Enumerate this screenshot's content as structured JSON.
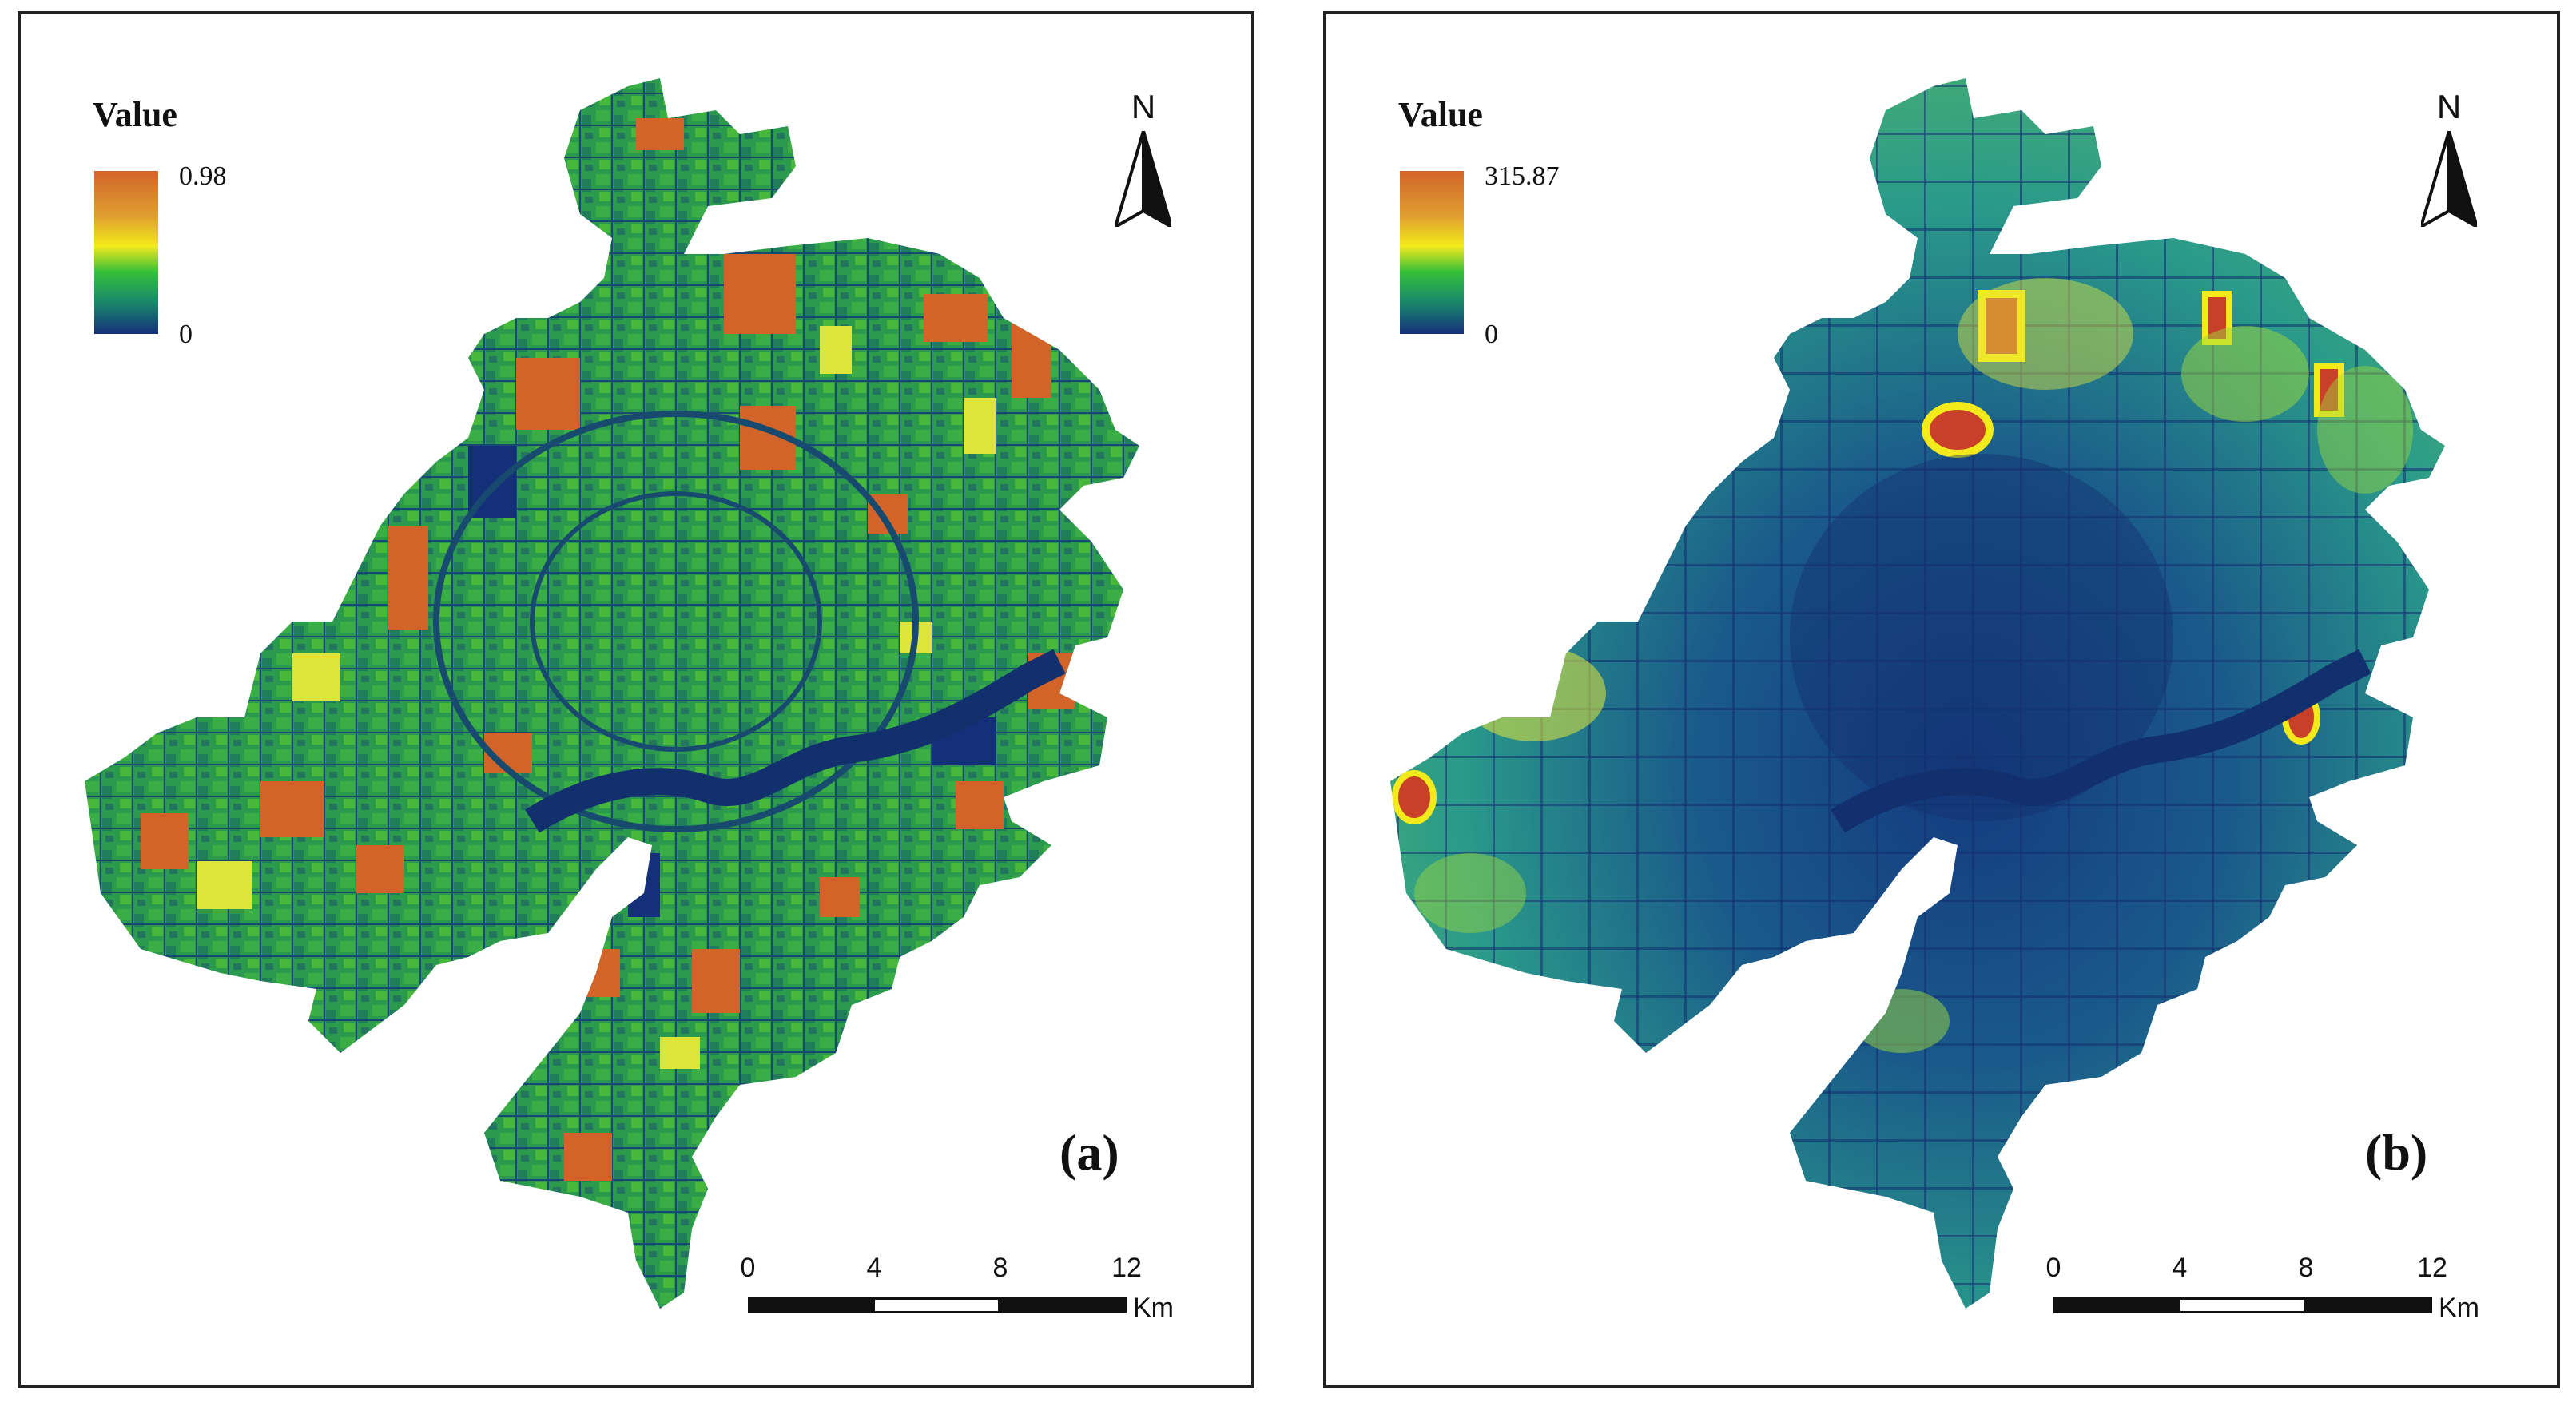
{
  "colors": {
    "ramp_high": "#d2642a",
    "ramp_mid": "#f2ea1a",
    "ramp_lowmid": "#2fb24a",
    "ramp_low": "#14307a",
    "panel_a_base": "#2c9a4c",
    "panel_b_base": "#1f8a8a",
    "river": "#12306e"
  },
  "panels": [
    {
      "id": "a",
      "legend": {
        "title": "Value",
        "max": "0.98",
        "min": "0"
      },
      "north_label": "N",
      "label": "(a)",
      "scalebar": {
        "ticks": [
          "0",
          "4",
          "8",
          "12"
        ],
        "unit": "Km"
      }
    },
    {
      "id": "b",
      "legend": {
        "title": "Value",
        "max": "315.87",
        "min": "0"
      },
      "north_label": "N",
      "label": "(b)",
      "scalebar": {
        "ticks": [
          "0",
          "4",
          "8",
          "12"
        ],
        "unit": "Km"
      }
    }
  ]
}
